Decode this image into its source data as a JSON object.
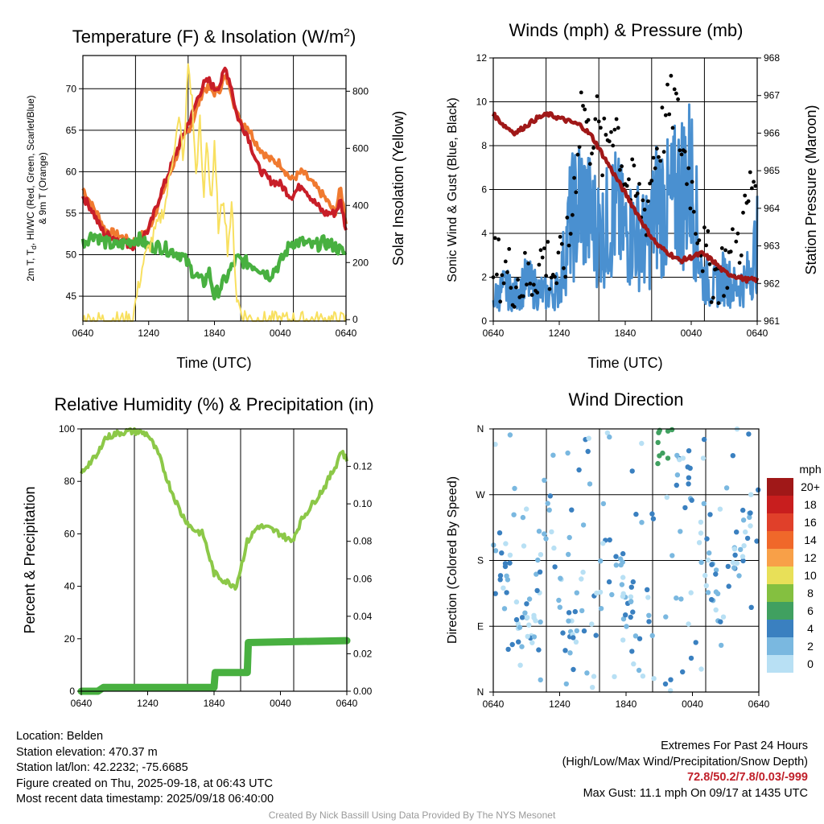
{
  "panels": {
    "temp": {
      "title": "Temperature (F) & Insolation (W/m²)",
      "xlabel": "Time (UTC)",
      "ylabel_left": "2m T, Td, HI/WC (Red, Green, Scarlet/Blue) & 9m T (Orange)",
      "ylabel_left_line1": "2m T, T",
      "ylabel_left_sub": "d",
      "ylabel_left_line1b": ", HI/WC (Red, Green, Scarlet/Blue)",
      "ylabel_left_line2": "& 9m T (Orange)",
      "ylabel_right": "Solar Insolation (Yellow)",
      "title_main": "Temperature (F) & Insolation (W/m",
      "title_sup": "2",
      "title_end": ")"
    },
    "winds": {
      "title": "Winds (mph) & Pressure (mb)",
      "xlabel": "Time (UTC)",
      "ylabel_left": "Sonic Wind & Gust (Blue, Black)",
      "ylabel_right": "Station Pressure (Maroon)"
    },
    "rh": {
      "title": "Relative Humidity (%) & Precipitation (in)",
      "ylabel_left": "Percent & Precipitation"
    },
    "wdir": {
      "title": "Wind Direction",
      "ylabel_left": "Direction (Colored By Speed)",
      "legend_title": "mph",
      "legend_labels": [
        "20+",
        "18",
        "16",
        "14",
        "12",
        "10",
        "8",
        "6",
        "4",
        "2",
        "0"
      ],
      "legend_colors": [
        "#a01818",
        "#c81e1e",
        "#e0402a",
        "#f0682a",
        "#f8a048",
        "#e8e058",
        "#84c040",
        "#40a060",
        "#3a80c0",
        "#7ab8e0",
        "#b8e0f4"
      ]
    }
  },
  "chart_data": [
    {
      "type": "line",
      "x_ticks": [
        "0640",
        "1240",
        "1840",
        "0040",
        "0640"
      ],
      "ylim_left": [
        42,
        74
      ],
      "yticks_left": [
        45,
        50,
        55,
        60,
        65,
        70
      ],
      "ylim_right": [
        -5,
        925
      ],
      "yticks_right": [
        0,
        200,
        400,
        600,
        800
      ],
      "series": [
        {
          "color": "#f07a30",
          "axis": "left",
          "x": [
            0,
            0.8,
            1.5,
            2,
            3,
            4.5,
            6,
            7,
            8,
            9,
            10,
            10.5,
            11,
            11.5,
            12,
            12.5,
            13,
            13.5,
            14,
            14.5,
            15,
            16,
            17,
            18,
            19,
            20,
            21,
            22,
            23,
            23.5,
            24
          ],
          "values": [
            58,
            56,
            54.5,
            53,
            52.5,
            51.5,
            53,
            56.5,
            60,
            63.5,
            66,
            68,
            70,
            70,
            69.5,
            70,
            71.5,
            70,
            67,
            66,
            65.5,
            63,
            61.5,
            61,
            59,
            60,
            58.5,
            57,
            55,
            58,
            54
          ]
        },
        {
          "color": "#c81e28",
          "axis": "left",
          "x": [
            0,
            0.8,
            1.5,
            2,
            3,
            4.5,
            6,
            7,
            8,
            9,
            10,
            10.5,
            11,
            11.5,
            12,
            12.5,
            13,
            13.5,
            14,
            14.5,
            15,
            16,
            17,
            18,
            19,
            20,
            21,
            22,
            23,
            23.5,
            24
          ],
          "values": [
            57,
            55.5,
            53.5,
            52.5,
            52,
            51,
            53,
            57,
            60.5,
            64,
            67,
            69,
            70.5,
            71,
            70,
            70.5,
            72.5,
            70.5,
            67,
            65.5,
            64.5,
            60.5,
            59,
            58.5,
            57,
            58.5,
            56.5,
            55,
            55,
            56.5,
            53
          ]
        },
        {
          "color": "#48b040",
          "axis": "left",
          "x": [
            0,
            0.5,
            1,
            2,
            3,
            4,
            5,
            6,
            7,
            8,
            9,
            10,
            11,
            11.5,
            12,
            13,
            14,
            15,
            16,
            17,
            18,
            19,
            20,
            21,
            22,
            23,
            24
          ],
          "values": [
            51.5,
            52,
            52.5,
            51.5,
            51,
            51.5,
            52,
            51,
            51,
            50.5,
            50,
            48,
            46.5,
            48,
            45,
            47,
            49.5,
            49,
            48.5,
            47.5,
            49,
            51.5,
            51.5,
            51,
            51.5,
            51,
            50
          ]
        },
        {
          "color": "#f8e060",
          "axis": "right",
          "x": [
            0,
            4.5,
            5.5,
            6.5,
            7.5,
            8.3,
            8.8,
            9.2,
            9.6,
            10,
            10.3,
            10.7,
            11,
            11.3,
            11.7,
            12,
            12.4,
            12.8,
            13.2,
            13.6,
            14,
            14.5,
            15.5,
            24
          ],
          "values": [
            0,
            0,
            200,
            300,
            400,
            600,
            700,
            550,
            900,
            750,
            500,
            700,
            400,
            650,
            400,
            600,
            300,
            450,
            250,
            400,
            80,
            20,
            0,
            0
          ]
        }
      ]
    },
    {
      "type": "line",
      "x_ticks": [
        "0640",
        "1240",
        "1840",
        "0040",
        "0640"
      ],
      "ylim_left": [
        0,
        12
      ],
      "yticks_left": [
        0,
        2,
        4,
        6,
        8,
        10,
        12
      ],
      "ylim_right": [
        961,
        968
      ],
      "yticks_right": [
        961,
        962,
        963,
        964,
        965,
        966,
        967,
        968
      ],
      "series": [
        {
          "color": "#4a90d0",
          "axis": "left",
          "x": [
            0,
            1,
            2,
            3,
            4,
            5,
            6,
            7,
            8,
            9,
            10,
            11,
            12,
            13,
            14,
            15,
            16,
            17,
            18,
            19,
            20,
            21,
            22,
            23,
            24
          ],
          "values": [
            1,
            1.5,
            1.2,
            1.8,
            1.4,
            1.2,
            1.5,
            4.5,
            5.5,
            4.5,
            4,
            5,
            4,
            4,
            3.5,
            5.5,
            5,
            6,
            6.5,
            2,
            1.5,
            2,
            1.5,
            1.8,
            3.5
          ]
        },
        {
          "color": "#000000",
          "axis": "left",
          "type": "scatter",
          "x": [
            0.2,
            1.3,
            2.4,
            3.5,
            4.6,
            5.8,
            6.9,
            7.5,
            8.1,
            8.7,
            9.3,
            9.9,
            10.5,
            11.1,
            11.8,
            12.5,
            13.2,
            13.9,
            14.6,
            15.3,
            15.9,
            16.5,
            17.1,
            17.7,
            18.4,
            19.2,
            20.1,
            21,
            21.9,
            22.8,
            23.6
          ],
          "values": [
            2.5,
            2.2,
            1.8,
            2,
            3,
            2,
            3.5,
            7,
            10.5,
            8,
            9.5,
            7.5,
            8.5,
            9.5,
            7,
            6,
            5.5,
            5,
            7.5,
            8.5,
            9.5,
            10,
            8,
            7,
            5,
            3,
            2,
            2.5,
            3,
            4.5,
            6.5
          ]
        },
        {
          "color": "#a01818",
          "axis": "right",
          "x": [
            0,
            1,
            2,
            3,
            4,
            5,
            6,
            7,
            8,
            9,
            10,
            11,
            12,
            13,
            14,
            15,
            16,
            17,
            18,
            19,
            20,
            21,
            22,
            23,
            24
          ],
          "values": [
            966.5,
            966.2,
            966,
            966.2,
            966.4,
            966.5,
            966.4,
            966.3,
            966.2,
            965.9,
            965.4,
            964.9,
            964.4,
            963.9,
            963.4,
            963,
            962.8,
            962.6,
            962.7,
            962.8,
            962.6,
            962.3,
            962.2,
            962.1,
            962.1
          ]
        }
      ]
    },
    {
      "type": "line",
      "x_ticks": [
        "0640",
        "1240",
        "1840",
        "0040",
        "0640"
      ],
      "ylim_left": [
        0,
        100
      ],
      "yticks_left": [
        0,
        20,
        40,
        60,
        80,
        100
      ],
      "ylim_right": [
        0,
        0.14
      ],
      "yticks_right": [
        "0.00",
        "0.02",
        "0.04",
        "0.06",
        "0.08",
        "0.10",
        "0.12"
      ],
      "series": [
        {
          "color": "#8cc848",
          "axis": "left",
          "x": [
            0,
            0.5,
            1,
            1.5,
            2,
            3,
            4,
            5,
            6,
            7,
            8,
            9,
            10,
            11,
            12,
            13,
            14,
            15,
            16,
            17,
            18,
            19,
            20,
            21,
            22,
            23,
            23.5,
            24
          ],
          "values": [
            83,
            86,
            88,
            90,
            96,
            98,
            99,
            99,
            98,
            90,
            78,
            68,
            62,
            60,
            45,
            42,
            40,
            57,
            63,
            62,
            60,
            57,
            66,
            72,
            78,
            86,
            92,
            88
          ]
        },
        {
          "color": "#48b040",
          "axis": "right",
          "x": [
            0,
            1.5,
            2,
            12,
            12.1,
            15,
            15.1,
            24
          ],
          "values": [
            0.0,
            0.0,
            0.002,
            0.002,
            0.01,
            0.01,
            0.026,
            0.027
          ]
        }
      ]
    },
    {
      "type": "scatter",
      "x_ticks": [
        "0640",
        "1240",
        "1840",
        "0040",
        "0640"
      ],
      "y_ticks": [
        "N",
        "E",
        "S",
        "W",
        "N"
      ],
      "ylim": [
        0,
        360
      ],
      "legend_title": "mph",
      "series": [
        {
          "x": [
            0.5,
            1.5,
            2.5,
            3.5,
            5,
            6.5,
            7.5,
            8,
            8.5,
            9,
            9.5,
            10,
            10.5,
            11.5,
            12.5,
            13.5,
            14,
            14.5,
            15,
            15.5,
            16,
            16.5,
            17,
            17.5,
            18,
            19,
            20,
            21,
            22,
            23,
            23.5
          ],
          "values": [
            175,
            160,
            60,
            100,
            230,
            90,
            100,
            120,
            135,
            80,
            150,
            200,
            180,
            160,
            100,
            5,
            100,
            290,
            325,
            330,
            320,
            300,
            290,
            280,
            300,
            200,
            140,
            90,
            180,
            240,
            250
          ]
        }
      ]
    }
  ],
  "footer": {
    "location": "Location: Belden",
    "elevation": "Station elevation: 470.37 m",
    "latlon": "Station lat/lon: 42.2232; -75.6685",
    "created": "Figure created on Thu, 2025-09-18, at 06:43 UTC",
    "recent": "Most recent data timestamp: 2025/09/18 06:40:00",
    "extremes_title": "Extremes For Past 24 Hours",
    "extremes_sub": "(High/Low/Max Wind/Precipitation/Snow Depth)",
    "extremes_values": "72.8/50.2/7.8/0.03/-999",
    "max_gust": "Max Gust: 11.1 mph On 09/17 at 1435 UTC",
    "credit": "Created By Nick Bassill Using Data Provided By The NYS Mesonet"
  }
}
